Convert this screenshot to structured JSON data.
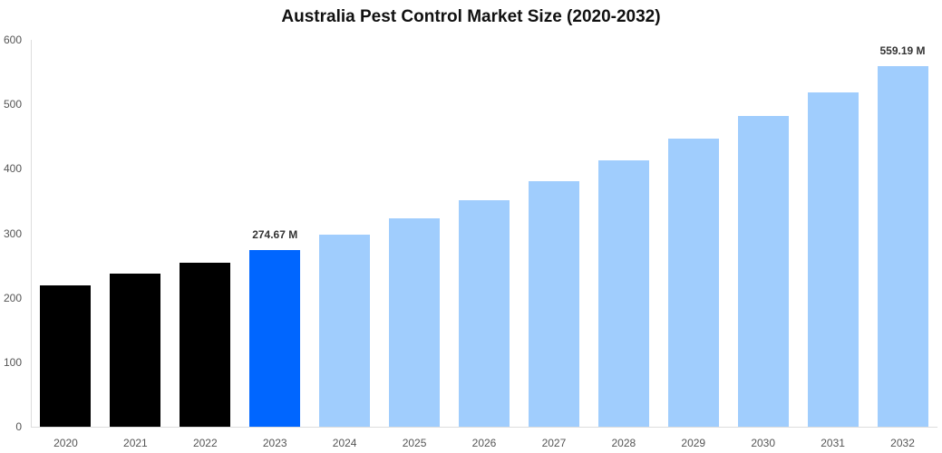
{
  "chart_data": {
    "type": "bar",
    "title": "Australia Pest Control Market Size (2020-2032)",
    "xlabel": "",
    "ylabel": "",
    "ylim": [
      0,
      600
    ],
    "yticks": [
      0,
      100,
      200,
      300,
      400,
      500,
      600
    ],
    "grid": false,
    "legend": null,
    "categories": [
      "2020",
      "2021",
      "2022",
      "2023",
      "2024",
      "2025",
      "2026",
      "2027",
      "2028",
      "2029",
      "2030",
      "2031",
      "2032"
    ],
    "values": [
      219,
      237,
      254,
      274.67,
      298,
      323,
      351,
      381,
      413,
      447,
      482,
      518,
      559.19
    ],
    "bar_colors": [
      "#000000",
      "#000000",
      "#000000",
      "#0066ff",
      "#a0cdfd",
      "#a0cdfd",
      "#a0cdfd",
      "#a0cdfd",
      "#a0cdfd",
      "#a0cdfd",
      "#a0cdfd",
      "#a0cdfd",
      "#a0cdfd"
    ],
    "annotations": [
      {
        "category": "2023",
        "text": "274.67 M"
      },
      {
        "category": "2032",
        "text": "559.19 M"
      }
    ]
  }
}
